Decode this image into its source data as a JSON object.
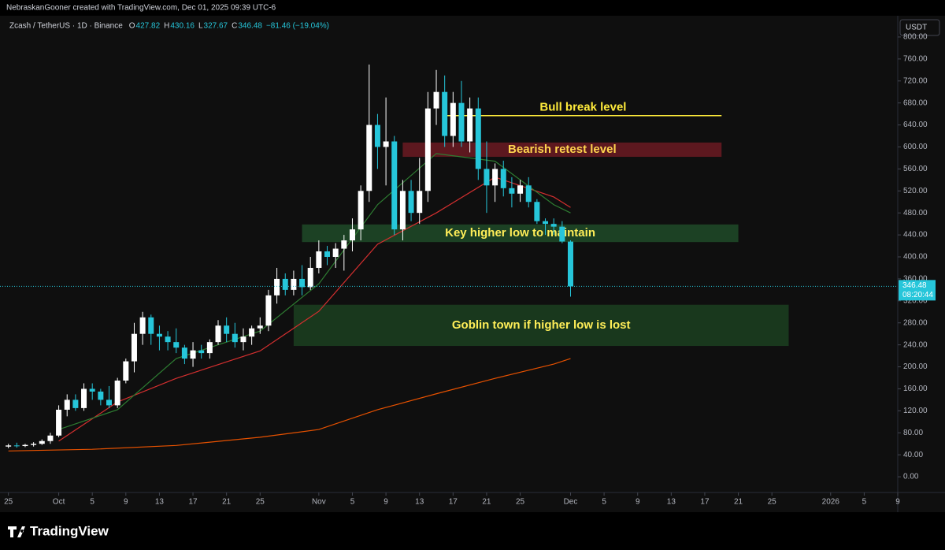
{
  "header": {
    "attribution": "NebraskanGooner created with TradingView.com, Dec 01, 2025 09:39 UTC-6",
    "symbol": "Zcash / TetherUS · 1D · Binance",
    "ohlc": [
      {
        "key": "O",
        "text": "427.82"
      },
      {
        "key": "H",
        "text": "430.16"
      },
      {
        "key": "L",
        "text": "327.67"
      },
      {
        "key": "C",
        "text": "346.48"
      }
    ],
    "change": "−81.46 (−19.04%)",
    "currency": "USDT"
  },
  "footer": {
    "brand": "TradingView"
  },
  "chart_data": {
    "type": "candlestick",
    "x": [
      "2025-09-25",
      "2025-09-26",
      "2025-09-27",
      "2025-09-28",
      "2025-09-29",
      "2025-09-30",
      "2025-10-01",
      "2025-10-02",
      "2025-10-03",
      "2025-10-04",
      "2025-10-05",
      "2025-10-06",
      "2025-10-07",
      "2025-10-08",
      "2025-10-09",
      "2025-10-10",
      "2025-10-11",
      "2025-10-12",
      "2025-10-13",
      "2025-10-14",
      "2025-10-15",
      "2025-10-16",
      "2025-10-17",
      "2025-10-18",
      "2025-10-19",
      "2025-10-20",
      "2025-10-21",
      "2025-10-22",
      "2025-10-23",
      "2025-10-24",
      "2025-10-25",
      "2025-10-26",
      "2025-10-27",
      "2025-10-28",
      "2025-10-29",
      "2025-10-30",
      "2025-10-31",
      "2025-11-01",
      "2025-11-02",
      "2025-11-03",
      "2025-11-04",
      "2025-11-05",
      "2025-11-06",
      "2025-11-07",
      "2025-11-08",
      "2025-11-09",
      "2025-11-10",
      "2025-11-11",
      "2025-11-12",
      "2025-11-13",
      "2025-11-14",
      "2025-11-15",
      "2025-11-16",
      "2025-11-17",
      "2025-11-18",
      "2025-11-19",
      "2025-11-20",
      "2025-11-21",
      "2025-11-22",
      "2025-11-23",
      "2025-11-24",
      "2025-11-25",
      "2025-11-26",
      "2025-11-27",
      "2025-11-28",
      "2025-11-29",
      "2025-11-30",
      "2025-12-01"
    ],
    "open": [
      55,
      57,
      56,
      58,
      60,
      65,
      75,
      122,
      140,
      125,
      160,
      155,
      140,
      130,
      175,
      210,
      260,
      290,
      260,
      255,
      245,
      235,
      215,
      230,
      225,
      245,
      275,
      260,
      245,
      255,
      270,
      275,
      330,
      360,
      340,
      360,
      345,
      380,
      410,
      400,
      415,
      430,
      450,
      520,
      640,
      600,
      610,
      450,
      520,
      480,
      520,
      670,
      700,
      620,
      680,
      610,
      670,
      560,
      530,
      560,
      525,
      515,
      530,
      500,
      465,
      460,
      455,
      427.82
    ],
    "high": [
      60,
      62,
      60,
      63,
      68,
      80,
      130,
      150,
      150,
      170,
      170,
      160,
      165,
      180,
      215,
      280,
      300,
      295,
      275,
      265,
      270,
      240,
      245,
      240,
      250,
      285,
      290,
      280,
      270,
      275,
      290,
      340,
      380,
      370,
      375,
      385,
      400,
      430,
      420,
      425,
      440,
      470,
      530,
      750,
      660,
      690,
      620,
      540,
      540,
      580,
      700,
      740,
      730,
      700,
      720,
      690,
      690,
      610,
      570,
      575,
      545,
      540,
      545,
      505,
      470,
      470,
      465,
      430.16
    ],
    "low": [
      52,
      53,
      54,
      55,
      58,
      60,
      72,
      110,
      120,
      120,
      140,
      130,
      125,
      125,
      170,
      190,
      240,
      240,
      230,
      230,
      225,
      205,
      200,
      215,
      215,
      240,
      245,
      235,
      230,
      240,
      260,
      265,
      315,
      330,
      330,
      330,
      340,
      370,
      385,
      380,
      375,
      410,
      430,
      500,
      560,
      530,
      440,
      430,
      465,
      460,
      500,
      640,
      600,
      600,
      600,
      590,
      540,
      480,
      500,
      510,
      490,
      500,
      490,
      460,
      440,
      440,
      425,
      327.67
    ],
    "close": [
      57,
      56,
      58,
      60,
      65,
      75,
      122,
      140,
      125,
      160,
      155,
      140,
      130,
      175,
      210,
      260,
      290,
      260,
      255,
      245,
      235,
      215,
      230,
      225,
      245,
      275,
      260,
      245,
      255,
      270,
      275,
      330,
      360,
      340,
      360,
      345,
      380,
      410,
      400,
      415,
      430,
      450,
      520,
      640,
      600,
      610,
      450,
      520,
      480,
      520,
      670,
      700,
      620,
      680,
      610,
      670,
      560,
      530,
      560,
      525,
      515,
      530,
      500,
      465,
      460,
      455,
      428,
      346.48
    ],
    "up_color": "#ffffff",
    "down_color": "#26c6da",
    "moving_averages": [
      {
        "color": "#e65100",
        "x": [
          "2025-09-25",
          "2025-10-05",
          "2025-10-15",
          "2025-10-25",
          "2025-11-01",
          "2025-11-08",
          "2025-11-15",
          "2025-11-22",
          "2025-11-29",
          "2025-12-01"
        ],
        "values": [
          47,
          50,
          57,
          72,
          86,
          122,
          151,
          179,
          205,
          215
        ]
      },
      {
        "color": "#d32f2f",
        "x": [
          "2025-10-01",
          "2025-10-08",
          "2025-10-15",
          "2025-10-25",
          "2025-11-01",
          "2025-11-08",
          "2025-11-15",
          "2025-11-22",
          "2025-11-29",
          "2025-12-01"
        ],
        "values": [
          65,
          136,
          179,
          229,
          301,
          423,
          480,
          545,
          509,
          490
        ]
      },
      {
        "color": "#2e7d32",
        "x": [
          "2025-10-01",
          "2025-10-08",
          "2025-10-15",
          "2025-10-25",
          "2025-11-01",
          "2025-11-08",
          "2025-11-15",
          "2025-11-22",
          "2025-11-29",
          "2025-12-01"
        ],
        "values": [
          86,
          122,
          215,
          265,
          351,
          495,
          588,
          574,
          495,
          480
        ]
      }
    ],
    "annotations": [
      {
        "kind": "line",
        "label": "Bull break level",
        "value": 657,
        "start": "2025-11-16",
        "end": "2025-12-19",
        "color": "#ffeb3b",
        "label_color": "#ffeb3b"
      },
      {
        "kind": "zone",
        "label": "Bearish retest level",
        "top": 608,
        "bottom": 582,
        "start": "2025-11-11",
        "end": "2025-12-19",
        "color": "#6b1a22",
        "label_color": "#ffd54f"
      },
      {
        "kind": "zone",
        "label": "Key higher low to maintain",
        "top": 459,
        "bottom": 427,
        "start": "2025-10-30",
        "end": "2025-12-21",
        "color": "#1f4a28",
        "label_color": "#ffee58"
      },
      {
        "kind": "zone",
        "label": "Goblin town if higher low is lost",
        "top": 313,
        "bottom": 238,
        "start": "2025-10-29",
        "end": "2025-12-27",
        "color": "#1b3f20",
        "label_color": "#ffee58"
      }
    ],
    "last_price": {
      "value": 346.48,
      "countdown": "08:20:44"
    },
    "xlim": [
      "2025-09-24",
      "2026-01-09"
    ],
    "xticks": [
      {
        "value": "2025-09-25",
        "label": "25"
      },
      {
        "value": "2025-10-01",
        "label": "Oct"
      },
      {
        "value": "2025-10-05",
        "label": "5"
      },
      {
        "value": "2025-10-09",
        "label": "9"
      },
      {
        "value": "2025-10-13",
        "label": "13"
      },
      {
        "value": "2025-10-17",
        "label": "17"
      },
      {
        "value": "2025-10-21",
        "label": "21"
      },
      {
        "value": "2025-10-25",
        "label": "25"
      },
      {
        "value": "2025-11-01",
        "label": "Nov"
      },
      {
        "value": "2025-11-05",
        "label": "5"
      },
      {
        "value": "2025-11-09",
        "label": "9"
      },
      {
        "value": "2025-11-13",
        "label": "13"
      },
      {
        "value": "2025-11-17",
        "label": "17"
      },
      {
        "value": "2025-11-21",
        "label": "21"
      },
      {
        "value": "2025-11-25",
        "label": "25"
      },
      {
        "value": "2025-12-01",
        "label": "Dec"
      },
      {
        "value": "2025-12-05",
        "label": "5"
      },
      {
        "value": "2025-12-09",
        "label": "9"
      },
      {
        "value": "2025-12-13",
        "label": "13"
      },
      {
        "value": "2025-12-17",
        "label": "17"
      },
      {
        "value": "2025-12-21",
        "label": "21"
      },
      {
        "value": "2025-12-25",
        "label": "25"
      },
      {
        "value": "2026-01-01",
        "label": "2026"
      },
      {
        "value": "2026-01-05",
        "label": "5"
      },
      {
        "value": "2026-01-09",
        "label": "9"
      }
    ],
    "ylim": [
      -40,
      830
    ],
    "yticks": [
      {
        "value": 0,
        "label": "0.00"
      },
      {
        "value": 40,
        "label": "40.00"
      },
      {
        "value": 80,
        "label": "80.00"
      },
      {
        "value": 120,
        "label": "120.00"
      },
      {
        "value": 160,
        "label": "160.00"
      },
      {
        "value": 200,
        "label": "200.00"
      },
      {
        "value": 240,
        "label": "240.00"
      },
      {
        "value": 280,
        "label": "280.00"
      },
      {
        "value": 320,
        "label": "320.00"
      },
      {
        "value": 360,
        "label": "360.00"
      },
      {
        "value": 400,
        "label": "400.00"
      },
      {
        "value": 440,
        "label": "440.00"
      },
      {
        "value": 480,
        "label": "480.00"
      },
      {
        "value": 520,
        "label": "520.00"
      },
      {
        "value": 560,
        "label": "560.00"
      },
      {
        "value": 600,
        "label": "600.00"
      },
      {
        "value": 640,
        "label": "640.00"
      },
      {
        "value": 680,
        "label": "680.00"
      },
      {
        "value": 720,
        "label": "720.00"
      },
      {
        "value": 760,
        "label": "760.00"
      },
      {
        "value": 800,
        "label": "800.00"
      }
    ],
    "grid": false
  }
}
